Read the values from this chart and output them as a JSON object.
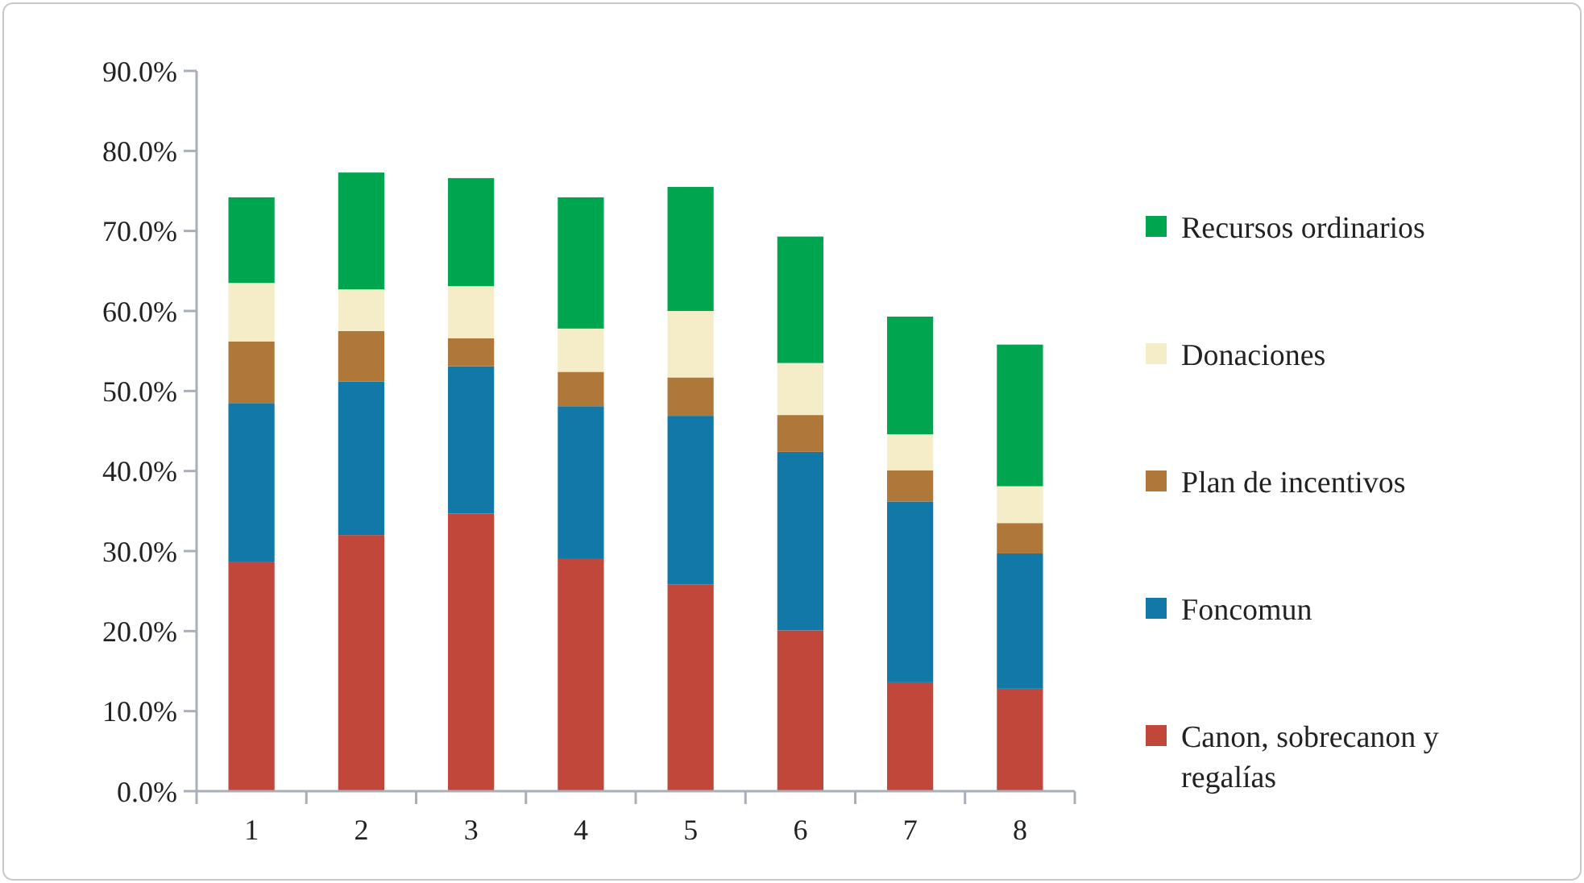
{
  "chart_data": {
    "type": "bar",
    "stacked": true,
    "categories": [
      "1",
      "2",
      "3",
      "4",
      "5",
      "6",
      "7",
      "8"
    ],
    "series": [
      {
        "name": "Canon, sobrecanon y regalías",
        "color": "#c0473a",
        "values": [
          28.6,
          32.0,
          34.7,
          29.0,
          25.8,
          20.1,
          13.6,
          12.8
        ]
      },
      {
        "name": "Foncomun",
        "color": "#1178a8",
        "values": [
          19.9,
          19.2,
          18.4,
          19.1,
          21.1,
          22.3,
          22.6,
          16.9
        ]
      },
      {
        "name": "Plan de incentivos",
        "color": "#b07838",
        "values": [
          7.7,
          6.3,
          3.5,
          4.3,
          4.8,
          4.6,
          3.9,
          3.8
        ]
      },
      {
        "name": "Donaciones",
        "color": "#f5edc8",
        "values": [
          7.3,
          5.2,
          6.5,
          5.4,
          8.3,
          6.5,
          4.5,
          4.6
        ]
      },
      {
        "name": "Recursos ordinarios",
        "color": "#00a550",
        "values": [
          10.7,
          14.6,
          13.5,
          16.4,
          15.5,
          15.8,
          14.7,
          17.7
        ]
      }
    ],
    "ylim": [
      0,
      90
    ],
    "yticks": [
      {
        "value": 0,
        "label": "0.0%"
      },
      {
        "value": 10,
        "label": "10.0%"
      },
      {
        "value": 20,
        "label": "20.0%"
      },
      {
        "value": 30,
        "label": "30.0%"
      },
      {
        "value": 40,
        "label": "40.0%"
      },
      {
        "value": 50,
        "label": "50.0%"
      },
      {
        "value": 60,
        "label": "60.0%"
      },
      {
        "value": 70,
        "label": "70.0%"
      },
      {
        "value": 80,
        "label": "80.0%"
      },
      {
        "value": 90,
        "label": "90.0%"
      }
    ],
    "grid": false,
    "legend": "right"
  }
}
